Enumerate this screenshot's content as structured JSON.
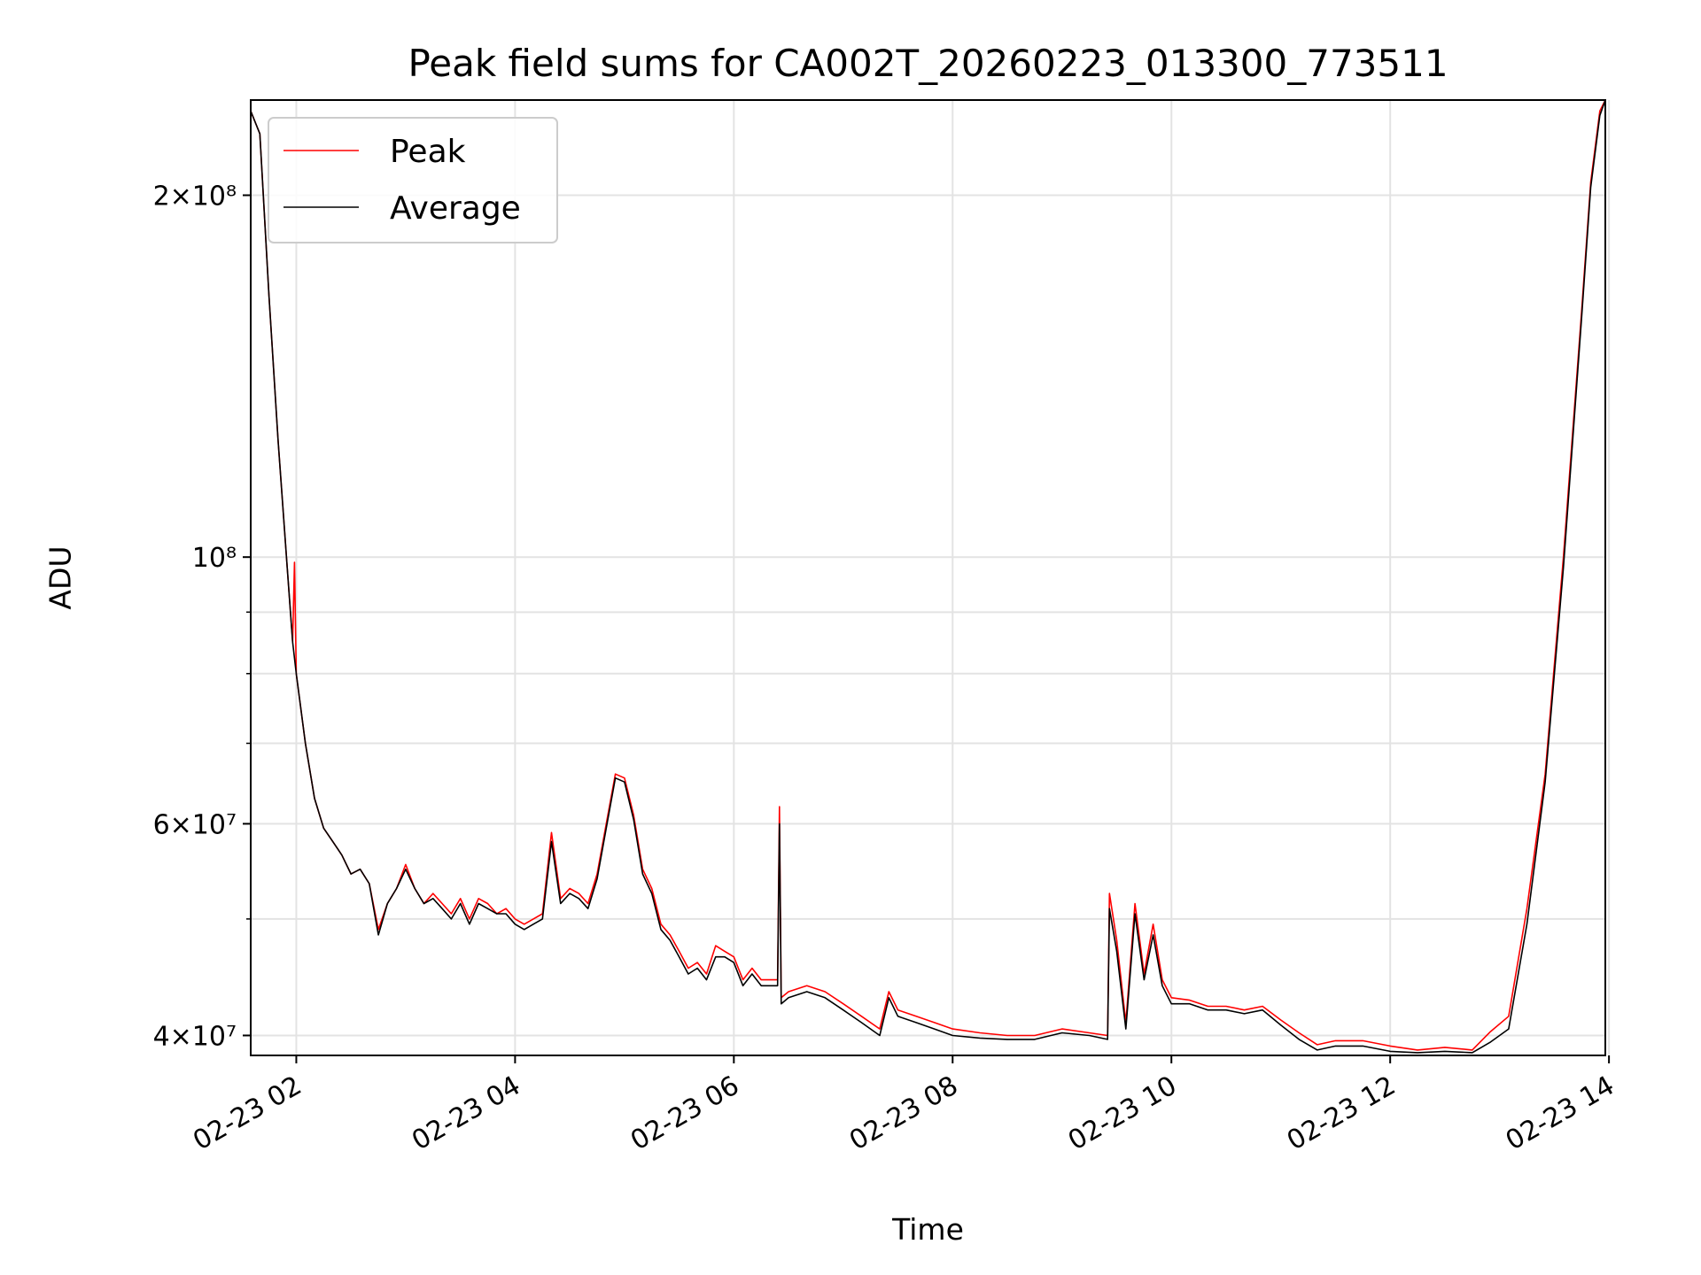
{
  "chart_data": {
    "type": "line",
    "title": "Peak field sums for CA002T_20260223_013300_773511",
    "xlabel": "Time",
    "ylabel": "ADU",
    "x_scale": "time",
    "y_scale": "log",
    "xlim": [
      "2026-02-23 01:35",
      "2026-02-23 13:58"
    ],
    "ylim": [
      38500000,
      240000000
    ],
    "x_ticks": [
      "02-23 02",
      "02-23 04",
      "02-23 06",
      "02-23 08",
      "02-23 10",
      "02-23 12",
      "02-23 14"
    ],
    "y_ticks": [
      {
        "value": 40000000,
        "label": "4×10⁷"
      },
      {
        "value": 60000000,
        "label": "6×10⁷"
      },
      {
        "value": 100000000,
        "label": "10⁸"
      },
      {
        "value": 200000000,
        "label": "2×10⁸"
      }
    ],
    "y_minor_ticks": [
      50000000,
      70000000,
      80000000,
      90000000
    ],
    "grid": true,
    "legend_position": "top-left",
    "series": [
      {
        "name": "Peak",
        "color": "#ff0000",
        "x": [
          "2026-02-23 01:35",
          "2026-02-23 01:40",
          "2026-02-23 01:45",
          "2026-02-23 01:50",
          "2026-02-23 01:55",
          "2026-02-23 01:58",
          "2026-02-23 01:59",
          "2026-02-23 02:00",
          "2026-02-23 02:05",
          "2026-02-23 02:10",
          "2026-02-23 02:15",
          "2026-02-23 02:20",
          "2026-02-23 02:25",
          "2026-02-23 02:30",
          "2026-02-23 02:35",
          "2026-02-23 02:40",
          "2026-02-23 02:45",
          "2026-02-23 02:50",
          "2026-02-23 02:55",
          "2026-02-23 03:00",
          "2026-02-23 03:05",
          "2026-02-23 03:10",
          "2026-02-23 03:15",
          "2026-02-23 03:20",
          "2026-02-23 03:25",
          "2026-02-23 03:30",
          "2026-02-23 03:35",
          "2026-02-23 03:40",
          "2026-02-23 03:45",
          "2026-02-23 03:50",
          "2026-02-23 03:55",
          "2026-02-23 04:00",
          "2026-02-23 04:05",
          "2026-02-23 04:10",
          "2026-02-23 04:15",
          "2026-02-23 04:20",
          "2026-02-23 04:25",
          "2026-02-23 04:30",
          "2026-02-23 04:35",
          "2026-02-23 04:40",
          "2026-02-23 04:45",
          "2026-02-23 04:50",
          "2026-02-23 04:55",
          "2026-02-23 05:00",
          "2026-02-23 05:05",
          "2026-02-23 05:10",
          "2026-02-23 05:15",
          "2026-02-23 05:20",
          "2026-02-23 05:25",
          "2026-02-23 05:30",
          "2026-02-23 05:35",
          "2026-02-23 05:40",
          "2026-02-23 05:45",
          "2026-02-23 05:50",
          "2026-02-23 05:55",
          "2026-02-23 06:00",
          "2026-02-23 06:05",
          "2026-02-23 06:10",
          "2026-02-23 06:15",
          "2026-02-23 06:20",
          "2026-02-23 06:24",
          "2026-02-23 06:25",
          "2026-02-23 06:26",
          "2026-02-23 06:30",
          "2026-02-23 06:40",
          "2026-02-23 06:50",
          "2026-02-23 07:00",
          "2026-02-23 07:10",
          "2026-02-23 07:20",
          "2026-02-23 07:25",
          "2026-02-23 07:30",
          "2026-02-23 07:40",
          "2026-02-23 07:50",
          "2026-02-23 08:00",
          "2026-02-23 08:15",
          "2026-02-23 08:30",
          "2026-02-23 08:45",
          "2026-02-23 09:00",
          "2026-02-23 09:15",
          "2026-02-23 09:25",
          "2026-02-23 09:26",
          "2026-02-23 09:30",
          "2026-02-23 09:35",
          "2026-02-23 09:40",
          "2026-02-23 09:45",
          "2026-02-23 09:50",
          "2026-02-23 09:55",
          "2026-02-23 10:00",
          "2026-02-23 10:10",
          "2026-02-23 10:20",
          "2026-02-23 10:30",
          "2026-02-23 10:40",
          "2026-02-23 10:50",
          "2026-02-23 11:00",
          "2026-02-23 11:10",
          "2026-02-23 11:20",
          "2026-02-23 11:30",
          "2026-02-23 11:45",
          "2026-02-23 12:00",
          "2026-02-23 12:15",
          "2026-02-23 12:30",
          "2026-02-23 12:45",
          "2026-02-23 12:55",
          "2026-02-23 13:05",
          "2026-02-23 13:15",
          "2026-02-23 13:25",
          "2026-02-23 13:35",
          "2026-02-23 13:45",
          "2026-02-23 13:50",
          "2026-02-23 13:55",
          "2026-02-23 13:58"
        ],
        "y": [
          235000000,
          225000000,
          165000000,
          125000000,
          98000000,
          85000000,
          99000000,
          80000000,
          70000000,
          63000000,
          59500000,
          58000000,
          56500000,
          54500000,
          55000000,
          53500000,
          49000000,
          51500000,
          53000000,
          55500000,
          53000000,
          51500000,
          52500000,
          51500000,
          50500000,
          52000000,
          50000000,
          52000000,
          51500000,
          50500000,
          51000000,
          50000000,
          49500000,
          50000000,
          50500000,
          59000000,
          52000000,
          53000000,
          52500000,
          51500000,
          54500000,
          60000000,
          66000000,
          65500000,
          61000000,
          55000000,
          53000000,
          49500000,
          48500000,
          47000000,
          45500000,
          46000000,
          45000000,
          47500000,
          47000000,
          46500000,
          44500000,
          45500000,
          44500000,
          44500000,
          44500000,
          62000000,
          43000000,
          43500000,
          44000000,
          43500000,
          42500000,
          41500000,
          40500000,
          43500000,
          42000000,
          41500000,
          41000000,
          40500000,
          40200000,
          40000000,
          40000000,
          40500000,
          40200000,
          40000000,
          52500000,
          48000000,
          41000000,
          51500000,
          45000000,
          49500000,
          44500000,
          43000000,
          42800000,
          42300000,
          42300000,
          42000000,
          42300000,
          41200000,
          40200000,
          39300000,
          39600000,
          39600000,
          39200000,
          38900000,
          39100000,
          38900000,
          40300000,
          41500000,
          51000000,
          66000000,
          100000000,
          160000000,
          205000000,
          235000000,
          240000000
        ]
      },
      {
        "name": "Average",
        "color": "#000000",
        "x": [
          "2026-02-23 01:35",
          "2026-02-23 01:40",
          "2026-02-23 01:45",
          "2026-02-23 01:50",
          "2026-02-23 01:55",
          "2026-02-23 01:58",
          "2026-02-23 02:00",
          "2026-02-23 02:05",
          "2026-02-23 02:10",
          "2026-02-23 02:15",
          "2026-02-23 02:20",
          "2026-02-23 02:25",
          "2026-02-23 02:30",
          "2026-02-23 02:35",
          "2026-02-23 02:40",
          "2026-02-23 02:45",
          "2026-02-23 02:50",
          "2026-02-23 02:55",
          "2026-02-23 03:00",
          "2026-02-23 03:05",
          "2026-02-23 03:10",
          "2026-02-23 03:15",
          "2026-02-23 03:20",
          "2026-02-23 03:25",
          "2026-02-23 03:30",
          "2026-02-23 03:35",
          "2026-02-23 03:40",
          "2026-02-23 03:45",
          "2026-02-23 03:50",
          "2026-02-23 03:55",
          "2026-02-23 04:00",
          "2026-02-23 04:05",
          "2026-02-23 04:10",
          "2026-02-23 04:15",
          "2026-02-23 04:20",
          "2026-02-23 04:25",
          "2026-02-23 04:30",
          "2026-02-23 04:35",
          "2026-02-23 04:40",
          "2026-02-23 04:45",
          "2026-02-23 04:50",
          "2026-02-23 04:55",
          "2026-02-23 05:00",
          "2026-02-23 05:05",
          "2026-02-23 05:10",
          "2026-02-23 05:15",
          "2026-02-23 05:20",
          "2026-02-23 05:25",
          "2026-02-23 05:30",
          "2026-02-23 05:35",
          "2026-02-23 05:40",
          "2026-02-23 05:45",
          "2026-02-23 05:50",
          "2026-02-23 05:55",
          "2026-02-23 06:00",
          "2026-02-23 06:05",
          "2026-02-23 06:10",
          "2026-02-23 06:15",
          "2026-02-23 06:20",
          "2026-02-23 06:24",
          "2026-02-23 06:25",
          "2026-02-23 06:26",
          "2026-02-23 06:30",
          "2026-02-23 06:40",
          "2026-02-23 06:50",
          "2026-02-23 07:00",
          "2026-02-23 07:10",
          "2026-02-23 07:20",
          "2026-02-23 07:25",
          "2026-02-23 07:30",
          "2026-02-23 07:40",
          "2026-02-23 07:50",
          "2026-02-23 08:00",
          "2026-02-23 08:15",
          "2026-02-23 08:30",
          "2026-02-23 08:45",
          "2026-02-23 09:00",
          "2026-02-23 09:15",
          "2026-02-23 09:25",
          "2026-02-23 09:26",
          "2026-02-23 09:30",
          "2026-02-23 09:35",
          "2026-02-23 09:40",
          "2026-02-23 09:45",
          "2026-02-23 09:50",
          "2026-02-23 09:55",
          "2026-02-23 10:00",
          "2026-02-23 10:10",
          "2026-02-23 10:20",
          "2026-02-23 10:30",
          "2026-02-23 10:40",
          "2026-02-23 10:50",
          "2026-02-23 11:00",
          "2026-02-23 11:10",
          "2026-02-23 11:20",
          "2026-02-23 11:30",
          "2026-02-23 11:45",
          "2026-02-23 12:00",
          "2026-02-23 12:15",
          "2026-02-23 12:30",
          "2026-02-23 12:45",
          "2026-02-23 12:55",
          "2026-02-23 13:05",
          "2026-02-23 13:15",
          "2026-02-23 13:25",
          "2026-02-23 13:35",
          "2026-02-23 13:45",
          "2026-02-23 13:50",
          "2026-02-23 13:55",
          "2026-02-23 13:58"
        ],
        "y": [
          235000000,
          225000000,
          165000000,
          125000000,
          98000000,
          85000000,
          80000000,
          70000000,
          63000000,
          59500000,
          58000000,
          56500000,
          54500000,
          55000000,
          53500000,
          48500000,
          51500000,
          53000000,
          55000000,
          53000000,
          51500000,
          52000000,
          51000000,
          50000000,
          51500000,
          49500000,
          51500000,
          51000000,
          50500000,
          50500000,
          49500000,
          49000000,
          49500000,
          50000000,
          58000000,
          51500000,
          52500000,
          52000000,
          51000000,
          54000000,
          59500000,
          65500000,
          65000000,
          60500000,
          54500000,
          52500000,
          49000000,
          48000000,
          46500000,
          45000000,
          45500000,
          44500000,
          46500000,
          46500000,
          46000000,
          44000000,
          45000000,
          44000000,
          44000000,
          44000000,
          60000000,
          42500000,
          43000000,
          43500000,
          43000000,
          42000000,
          41000000,
          40000000,
          43000000,
          41500000,
          41000000,
          40500000,
          40000000,
          39800000,
          39700000,
          39700000,
          40200000,
          40000000,
          39700000,
          51000000,
          47000000,
          40500000,
          50500000,
          44500000,
          48500000,
          44000000,
          42500000,
          42500000,
          42000000,
          42000000,
          41700000,
          42000000,
          40800000,
          39700000,
          38900000,
          39200000,
          39200000,
          38800000,
          38700000,
          38800000,
          38700000,
          39500000,
          40500000,
          49500000,
          65000000,
          98000000,
          158000000,
          203000000,
          233000000,
          240000000
        ]
      }
    ]
  }
}
